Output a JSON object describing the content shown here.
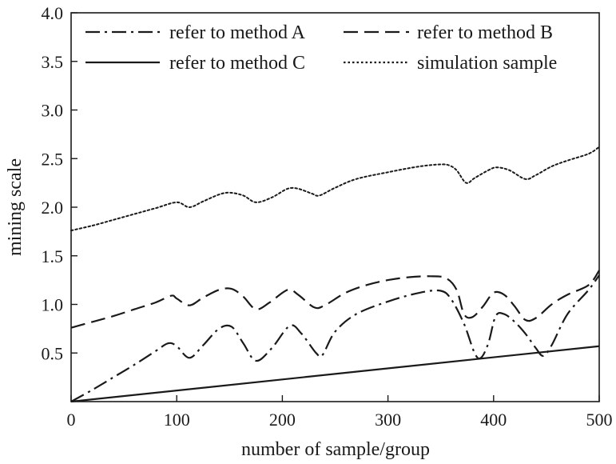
{
  "chart_data": {
    "type": "line",
    "title": "",
    "xlabel": "number of sample/group",
    "ylabel": "mining scale",
    "xlim": [
      0,
      500
    ],
    "ylim": [
      0,
      4.0
    ],
    "xticks": [
      0,
      100,
      200,
      300,
      400,
      500
    ],
    "yticks": [
      0.5,
      1.0,
      1.5,
      2.0,
      2.5,
      3.0,
      3.5,
      4.0
    ],
    "xtick_labels": [
      "0",
      "100",
      "200",
      "300",
      "400",
      "500"
    ],
    "ytick_labels": [
      "0.5",
      "1.0",
      "1.5",
      "2.0",
      "2.5",
      "3.0",
      "3.5",
      "4.0"
    ],
    "grid": false,
    "legend_position": "top",
    "series": [
      {
        "name": "refer to method A",
        "style": "dashdot",
        "color": "#1a1a1a",
        "x": [
          0,
          20,
          40,
          60,
          80,
          92,
          100,
          112,
          125,
          140,
          152,
          163,
          175,
          190,
          207,
          218,
          232,
          238,
          250,
          270,
          300,
          330,
          350,
          360,
          372,
          382,
          388,
          395,
          402,
          410,
          420,
          430,
          440,
          447,
          455,
          470,
          490,
          500
        ],
        "y": [
          0.0,
          0.12,
          0.25,
          0.38,
          0.52,
          0.6,
          0.57,
          0.45,
          0.58,
          0.75,
          0.77,
          0.6,
          0.42,
          0.55,
          0.78,
          0.7,
          0.5,
          0.48,
          0.72,
          0.9,
          1.03,
          1.12,
          1.14,
          1.05,
          0.8,
          0.5,
          0.45,
          0.6,
          0.88,
          0.9,
          0.82,
          0.7,
          0.55,
          0.47,
          0.58,
          0.9,
          1.15,
          1.3
        ]
      },
      {
        "name": "refer to method B",
        "style": "dashed",
        "color": "#1a1a1a",
        "x": [
          0,
          20,
          40,
          60,
          80,
          95,
          100,
          112,
          125,
          140,
          152,
          163,
          175,
          188,
          205,
          215,
          230,
          240,
          260,
          280,
          300,
          320,
          340,
          355,
          365,
          372,
          380,
          390,
          400,
          410,
          420,
          430,
          440,
          455,
          470,
          490,
          500
        ],
        "y": [
          0.76,
          0.82,
          0.88,
          0.95,
          1.02,
          1.09,
          1.06,
          0.99,
          1.07,
          1.15,
          1.16,
          1.08,
          0.95,
          1.02,
          1.15,
          1.1,
          0.97,
          0.99,
          1.12,
          1.2,
          1.25,
          1.28,
          1.29,
          1.27,
          1.15,
          0.9,
          0.87,
          0.98,
          1.12,
          1.1,
          0.98,
          0.84,
          0.86,
          1.0,
          1.1,
          1.2,
          1.35
        ]
      },
      {
        "name": "refer to method C",
        "style": "solid",
        "color": "#1a1a1a",
        "x": [
          0,
          500
        ],
        "y": [
          0.0,
          0.57
        ]
      },
      {
        "name": "simulation sample",
        "style": "dotted",
        "color": "#1a1a1a",
        "x": [
          0,
          20,
          40,
          60,
          80,
          100,
          112,
          125,
          140,
          150,
          163,
          175,
          190,
          205,
          215,
          228,
          235,
          250,
          270,
          300,
          330,
          350,
          358,
          365,
          374,
          382,
          395,
          403,
          415,
          430,
          440,
          455,
          470,
          490,
          500
        ],
        "y": [
          1.76,
          1.81,
          1.87,
          1.93,
          1.99,
          2.05,
          2.0,
          2.06,
          2.13,
          2.15,
          2.12,
          2.05,
          2.1,
          2.19,
          2.19,
          2.14,
          2.12,
          2.2,
          2.29,
          2.36,
          2.42,
          2.44,
          2.43,
          2.38,
          2.25,
          2.3,
          2.38,
          2.41,
          2.38,
          2.29,
          2.33,
          2.42,
          2.48,
          2.55,
          2.62
        ]
      }
    ]
  }
}
